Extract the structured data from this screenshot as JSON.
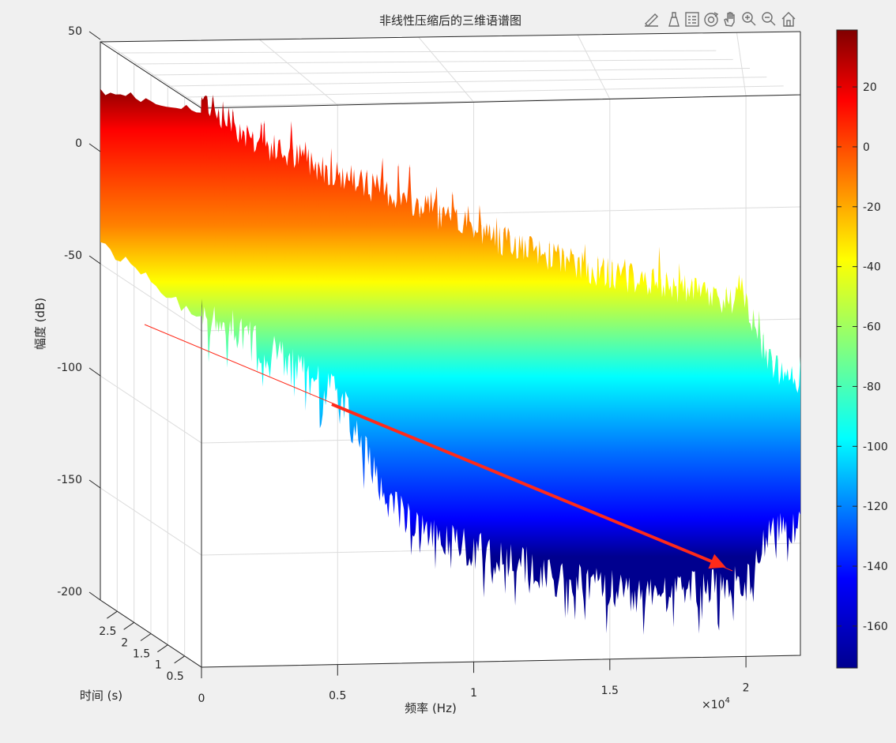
{
  "figure": {
    "title": "非线性压缩后的三维语谱图",
    "background": "#f0f0f0"
  },
  "toolbar": {
    "icons": [
      "brush-icon",
      "data-tip-icon",
      "legend-insert-icon",
      "rotate-3d-icon",
      "pan-icon",
      "zoom-in-icon",
      "zoom-out-icon",
      "home-icon"
    ]
  },
  "chart_data": {
    "type": "surface3d",
    "title": "非线性压缩后的三维语谱图",
    "xlabel": "频率 (Hz)",
    "ylabel": "时间 (s)",
    "zlabel": "幅度 (dB)",
    "x_exponent_label": "×10",
    "x_exponent_power": "4",
    "x_ticks": [
      0,
      0.5,
      1,
      1.5,
      2
    ],
    "x_tick_labels": [
      "0",
      "0.5",
      "1",
      "1.5",
      "2"
    ],
    "xlim": [
      0,
      2.2
    ],
    "y_ticks": [
      0.5,
      1,
      1.5,
      2,
      2.5
    ],
    "y_tick_labels": [
      "0.5",
      "1",
      "1.5",
      "2",
      "2.5"
    ],
    "ylim": [
      0,
      3
    ],
    "z_ticks": [
      -200,
      -150,
      -100,
      -50,
      0,
      50
    ],
    "z_tick_labels": [
      "-200",
      "-150",
      "-100",
      "-50",
      "0",
      "50"
    ],
    "zlim": [
      -200,
      50
    ],
    "colormap": "jet",
    "colorbar_ticks": [
      20,
      0,
      -20,
      -40,
      -60,
      -80,
      -100,
      -120,
      -140,
      -160
    ],
    "colorbar_tick_labels": [
      "20",
      "0",
      "-20",
      "-40",
      "-60",
      "-80",
      "-100",
      "-120",
      "-140",
      "-160"
    ],
    "clim": [
      -174,
      39
    ],
    "surface_profile": {
      "freq_x10k": [
        0.0,
        0.1,
        0.2,
        0.3,
        0.4,
        0.5,
        0.6,
        0.7,
        0.8,
        0.9,
        1.0,
        1.1,
        1.2,
        1.3,
        1.4,
        1.5,
        1.6,
        1.7,
        1.8,
        1.9,
        2.0,
        2.05,
        2.1,
        2.2
      ],
      "peak_db": [
        28,
        18,
        10,
        5,
        2,
        -3,
        -7,
        -10,
        -15,
        -20,
        -24,
        -28,
        -32,
        -34,
        -38,
        -40,
        -42,
        -44,
        -46,
        -48,
        -50,
        -65,
        -78,
        -82
      ],
      "floor_db": [
        -60,
        -65,
        -72,
        -78,
        -85,
        -92,
        -118,
        -140,
        -150,
        -155,
        -158,
        -160,
        -164,
        -168,
        -170,
        -172,
        -174,
        -172,
        -170,
        -168,
        -166,
        -150,
        -140,
        -140
      ]
    },
    "grid": true,
    "annotation_arrow": {
      "color": "#ff2a1a"
    }
  }
}
